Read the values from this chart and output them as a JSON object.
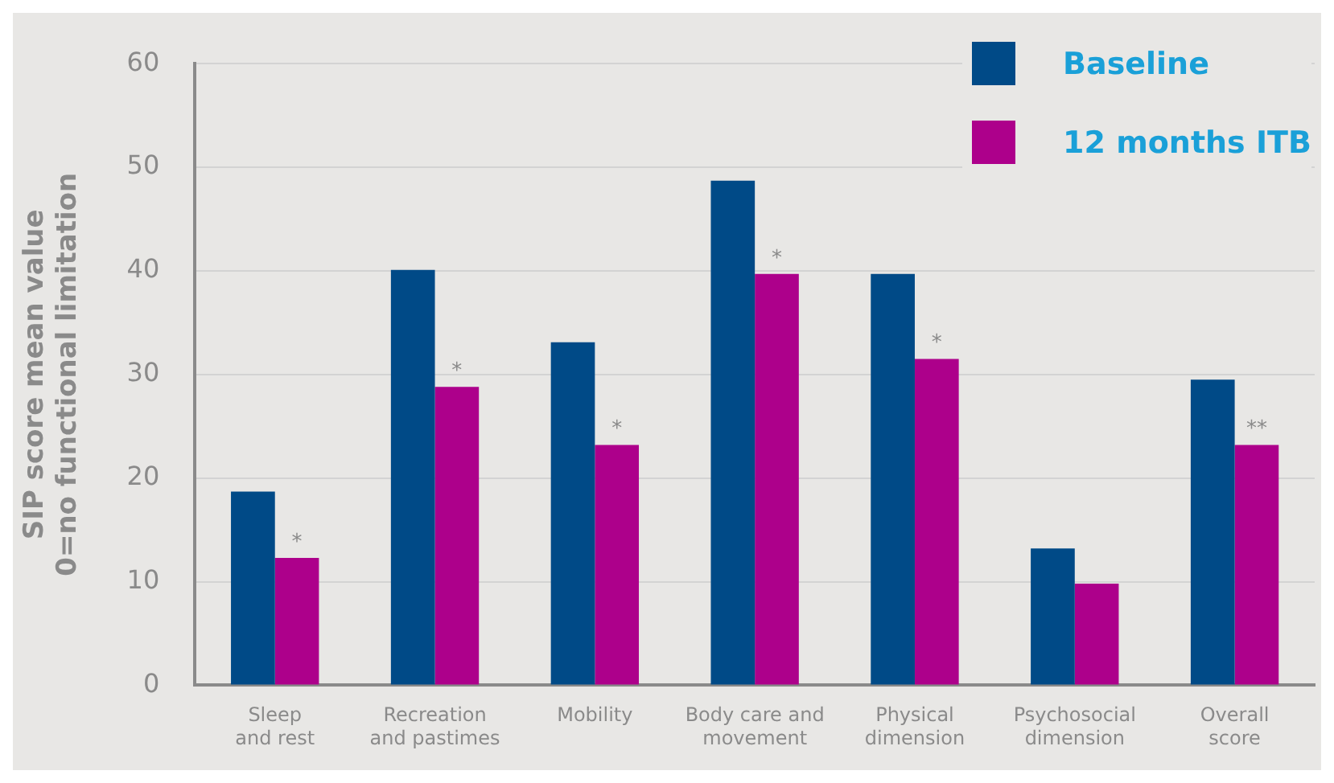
{
  "chart_data": {
    "type": "bar",
    "ylabel": "SIP score mean value\n0=no functional limitation",
    "categories": [
      "Sleep\nand rest",
      "Recreation\nand pastimes",
      "Mobility",
      "Body care and\nmovement",
      "Physical\ndimension",
      "Psychosocial\ndimension",
      "Overall\nscore"
    ],
    "series": [
      {
        "name": "Baseline",
        "color": "#004a87",
        "values": [
          18.7,
          40.1,
          33.1,
          48.7,
          39.7,
          13.2,
          29.5
        ]
      },
      {
        "name": "12 months ITB",
        "color": "#ad008b",
        "values": [
          12.3,
          28.8,
          23.2,
          39.7,
          31.5,
          9.8,
          23.2
        ]
      }
    ],
    "ylim": [
      0,
      60
    ],
    "yticks": [
      0,
      10,
      20,
      30,
      40,
      50,
      60
    ],
    "grid": "y",
    "legend": "top right",
    "annotations": [
      {
        "text": "*",
        "x": "Sleep\nand rest",
        "y": 12.3
      },
      {
        "text": "*",
        "x": "Recreation\nand pastimes",
        "y": 28.8
      },
      {
        "text": "*",
        "x": "Mobility",
        "y": 23.2
      },
      {
        "text": "*",
        "x": "Body care and\nmovement",
        "y": 39.7
      },
      {
        "text": "*",
        "x": "Physical\ndimension",
        "y": 31.5
      },
      {
        "text": "**",
        "x": "Overall\nscore",
        "y": 23.2
      }
    ]
  }
}
